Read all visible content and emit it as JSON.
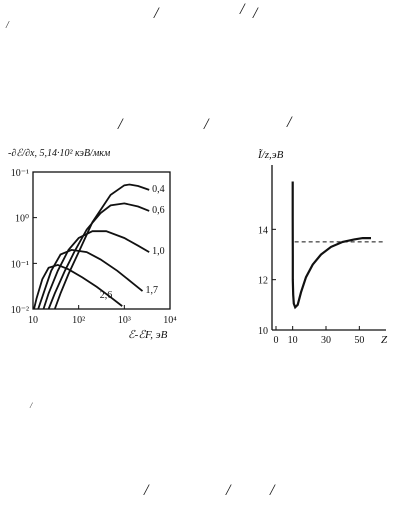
{
  "page_marks": [
    "/",
    "/",
    "/",
    "/",
    "/",
    "/",
    "/",
    "/",
    "/",
    "/",
    "/"
  ],
  "chart_data": [
    {
      "type": "line",
      "title": "-∂ℰ/∂x,  5,14·10² кэВ/мкм",
      "xlabel": "ℰ-ℰF, эВ",
      "ylabel": "",
      "x_scale": "log",
      "y_scale": "log",
      "xlim": [
        10,
        10000
      ],
      "ylim": [
        0.01,
        0.1
      ],
      "x_ticks": [
        "10",
        "10²",
        "10³",
        "10⁴"
      ],
      "x_tick_values": [
        10,
        100,
        1000,
        10000
      ],
      "y_ticks": [
        "10⁻¹",
        "10⁰",
        "10⁻¹",
        "10⁻²"
      ],
      "y_tick_fracs": [
        0,
        0.333,
        0.667,
        1.0
      ],
      "grid": false,
      "series": [
        {
          "name": "0,4",
          "points": [
            [
              30,
              0.01
            ],
            [
              40,
              0.013
            ],
            [
              60,
              0.018
            ],
            [
              100,
              0.026
            ],
            [
              200,
              0.043
            ],
            [
              500,
              0.068
            ],
            [
              1000,
              0.08
            ],
            [
              1300,
              0.081
            ],
            [
              2000,
              0.079
            ],
            [
              3500,
              0.074
            ]
          ]
        },
        {
          "name": "0,6",
          "points": [
            [
              22,
              0.01
            ],
            [
              30,
              0.013
            ],
            [
              50,
              0.019
            ],
            [
              80,
              0.026
            ],
            [
              150,
              0.038
            ],
            [
              300,
              0.05
            ],
            [
              500,
              0.057
            ],
            [
              1000,
              0.059
            ],
            [
              2000,
              0.056
            ],
            [
              3500,
              0.052
            ]
          ]
        },
        {
          "name": "1,0",
          "points": [
            [
              17,
              0.01
            ],
            [
              22,
              0.013
            ],
            [
              35,
              0.019
            ],
            [
              60,
              0.027
            ],
            [
              100,
              0.033
            ],
            [
              200,
              0.037
            ],
            [
              400,
              0.037
            ],
            [
              1000,
              0.033
            ],
            [
              2000,
              0.029
            ],
            [
              3500,
              0.026
            ]
          ]
        },
        {
          "name": "1,7",
          "points": [
            [
              13,
              0.01
            ],
            [
              17,
              0.013
            ],
            [
              25,
              0.019
            ],
            [
              40,
              0.025
            ],
            [
              70,
              0.027
            ],
            [
              150,
              0.026
            ],
            [
              300,
              0.023
            ],
            [
              700,
              0.019
            ],
            [
              1500,
              0.0155
            ],
            [
              2500,
              0.0135
            ]
          ]
        },
        {
          "name": "2,6",
          "points": [
            [
              10.5,
              0.01
            ],
            [
              12,
              0.012
            ],
            [
              16,
              0.0165
            ],
            [
              22,
              0.02
            ],
            [
              35,
              0.021
            ],
            [
              60,
              0.0195
            ],
            [
              120,
              0.017
            ],
            [
              250,
              0.0145
            ],
            [
              500,
              0.0122
            ],
            [
              900,
              0.0105
            ]
          ]
        }
      ],
      "annotations": [
        "0,4",
        "0,6",
        "1,0",
        "1,7",
        "2,6"
      ]
    },
    {
      "type": "line",
      "title": "Ĩ/z,эВ",
      "xlabel": "Z",
      "ylabel": "",
      "xlim": [
        0,
        60
      ],
      "ylim": [
        10,
        16
      ],
      "x_ticks": [
        "0",
        "10",
        "30",
        "50"
      ],
      "x_tick_values": [
        0,
        10,
        30,
        50
      ],
      "y_ticks": [
        "10",
        "12",
        "14"
      ],
      "y_tick_values": [
        10,
        12,
        14
      ],
      "grid": false,
      "series": [
        {
          "name": "",
          "points": [
            [
              10,
              15.9
            ],
            [
              10,
              14.5
            ],
            [
              10.05,
              13
            ],
            [
              10.1,
              12
            ],
            [
              10.3,
              11.4
            ],
            [
              10.7,
              11.05
            ],
            [
              11.5,
              10.9
            ],
            [
              13,
              11.0
            ],
            [
              15,
              11.5
            ],
            [
              18,
              12.1
            ],
            [
              22,
              12.6
            ],
            [
              27,
              13.0
            ],
            [
              33,
              13.3
            ],
            [
              40,
              13.5
            ],
            [
              47,
              13.6
            ],
            [
              52,
              13.65
            ],
            [
              57,
              13.65
            ]
          ]
        }
      ],
      "reference_line": {
        "y": 13.5,
        "style": "dashed"
      }
    }
  ]
}
